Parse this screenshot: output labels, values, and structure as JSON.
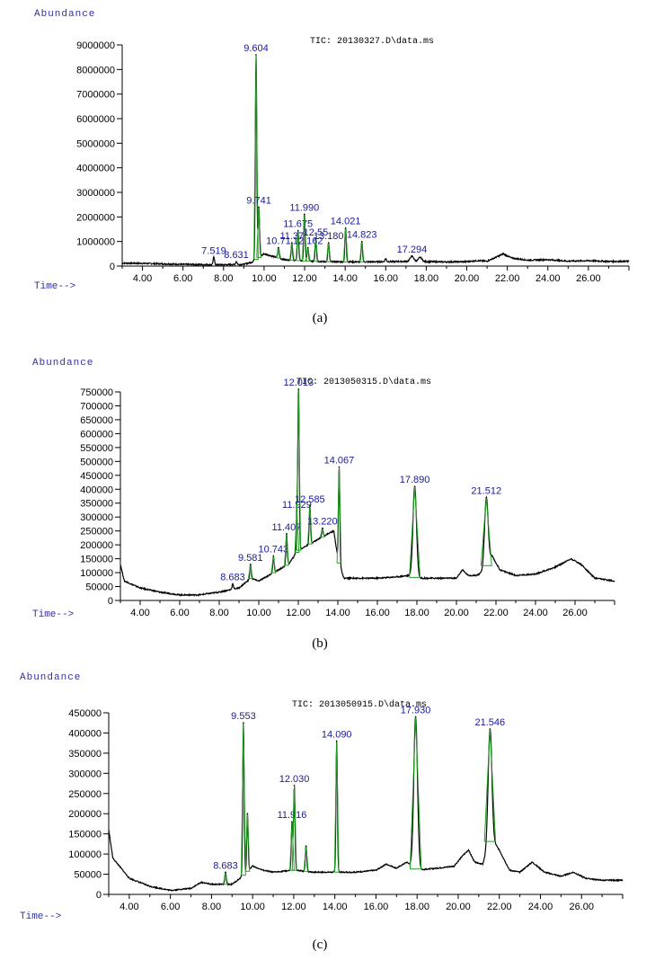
{
  "chart_data": [
    {
      "type": "line",
      "caption": "(a)",
      "ylabel": "Abundance",
      "xlabel": "Time-->",
      "title": "TIC: 20130327.D\\data.ms",
      "xlim": [
        3.0,
        28.0
      ],
      "ylim": [
        0,
        9000000
      ],
      "x_ticks": [
        "4.00",
        "6.00",
        "8.00",
        "10.00",
        "12.00",
        "14.00",
        "16.00",
        "18.00",
        "20.00",
        "22.00",
        "24.00",
        "26.00"
      ],
      "y_ticks": [
        "0",
        "1000000",
        "2000000",
        "3000000",
        "4000000",
        "5000000",
        "6000000",
        "7000000",
        "8000000",
        "9000000"
      ],
      "baseline": [
        [
          3.0,
          120000
        ],
        [
          4.0,
          110000
        ],
        [
          5.0,
          90000
        ],
        [
          6.0,
          70000
        ],
        [
          7.0,
          60000
        ],
        [
          8.0,
          55000
        ],
        [
          9.0,
          70000
        ],
        [
          9.4,
          160000
        ],
        [
          10.0,
          500000
        ],
        [
          10.5,
          380000
        ],
        [
          11.0,
          260000
        ],
        [
          12.0,
          210000
        ],
        [
          13.0,
          180000
        ],
        [
          14.0,
          170000
        ],
        [
          15.0,
          170000
        ],
        [
          16.0,
          180000
        ],
        [
          17.0,
          190000
        ],
        [
          18.0,
          180000
        ],
        [
          19.0,
          170000
        ],
        [
          20.0,
          180000
        ],
        [
          20.5,
          220000
        ],
        [
          21.0,
          200000
        ],
        [
          21.5,
          380000
        ],
        [
          21.8,
          500000
        ],
        [
          22.2,
          330000
        ],
        [
          23.0,
          240000
        ],
        [
          24.0,
          260000
        ],
        [
          25.0,
          200000
        ],
        [
          26.0,
          220000
        ],
        [
          27.0,
          190000
        ],
        [
          28.0,
          190000
        ]
      ],
      "peaks": [
        {
          "rt": 7.519,
          "height": 350000,
          "label": "7.519"
        },
        {
          "rt": 8.631,
          "height": 180000,
          "label": "8.631"
        },
        {
          "rt": 9.604,
          "height": 8600000,
          "label": "9.604"
        },
        {
          "rt": 9.741,
          "height": 2400000,
          "label": "9.741"
        },
        {
          "rt": 10.71,
          "height": 750000,
          "label": "10.71"
        },
        {
          "rt": 11.37,
          "height": 950000,
          "label": "11.37"
        },
        {
          "rt": 11.675,
          "height": 1450000,
          "label": "11.675"
        },
        {
          "rt": 11.99,
          "height": 2100000,
          "label": "11.990"
        },
        {
          "rt": 12.162,
          "height": 750000,
          "label": "12.162"
        },
        {
          "rt": 12.55,
          "height": 1100000,
          "label": "12.55"
        },
        {
          "rt": 13.18,
          "height": 950000,
          "label": "13.180"
        },
        {
          "rt": 14.021,
          "height": 1550000,
          "label": "14.021"
        },
        {
          "rt": 14.823,
          "height": 1000000,
          "label": "14.823"
        },
        {
          "rt": 16.0,
          "height": 300000,
          "label": ""
        },
        {
          "rt": 17.294,
          "height": 400000,
          "label": "17.294"
        },
        {
          "rt": 17.7,
          "height": 350000,
          "label": ""
        }
      ]
    },
    {
      "type": "line",
      "caption": "(b)",
      "ylabel": "Abundance",
      "xlabel": "Time-->",
      "title": "TIC: 2013050315.D\\data.ms",
      "xlim": [
        3.0,
        28.0
      ],
      "ylim": [
        0,
        750000
      ],
      "x_ticks": [
        "4.00",
        "6.00",
        "8.00",
        "10.00",
        "12.00",
        "14.00",
        "16.00",
        "18.00",
        "20.00",
        "22.00",
        "24.00",
        "26.00"
      ],
      "y_ticks": [
        "0",
        "50000",
        "100000",
        "150000",
        "200000",
        "250000",
        "300000",
        "350000",
        "400000",
        "450000",
        "500000",
        "550000",
        "600000",
        "650000",
        "700000",
        "750000"
      ],
      "baseline": [
        [
          3.0,
          130000
        ],
        [
          3.2,
          70000
        ],
        [
          4.0,
          45000
        ],
        [
          5.0,
          30000
        ],
        [
          6.0,
          20000
        ],
        [
          7.0,
          20000
        ],
        [
          8.0,
          30000
        ],
        [
          9.0,
          45000
        ],
        [
          9.6,
          80000
        ],
        [
          10.0,
          70000
        ],
        [
          10.5,
          90000
        ],
        [
          11.0,
          110000
        ],
        [
          11.5,
          130000
        ],
        [
          12.0,
          180000
        ],
        [
          12.5,
          200000
        ],
        [
          13.0,
          220000
        ],
        [
          13.5,
          240000
        ],
        [
          13.8,
          250000
        ],
        [
          14.0,
          150000
        ],
        [
          14.3,
          80000
        ],
        [
          15.0,
          80000
        ],
        [
          16.0,
          80000
        ],
        [
          17.0,
          85000
        ],
        [
          17.6,
          90000
        ],
        [
          18.0,
          80000
        ],
        [
          19.0,
          80000
        ],
        [
          20.0,
          80000
        ],
        [
          20.3,
          110000
        ],
        [
          20.6,
          90000
        ],
        [
          21.0,
          90000
        ],
        [
          21.3,
          100000
        ],
        [
          21.8,
          160000
        ],
        [
          22.2,
          110000
        ],
        [
          23.0,
          90000
        ],
        [
          24.0,
          95000
        ],
        [
          25.0,
          120000
        ],
        [
          25.8,
          150000
        ],
        [
          26.3,
          130000
        ],
        [
          27.0,
          80000
        ],
        [
          28.0,
          70000
        ]
      ],
      "peaks": [
        {
          "rt": 8.683,
          "height": 60000,
          "label": "8.683"
        },
        {
          "rt": 9.581,
          "height": 130000,
          "label": "9.581"
        },
        {
          "rt": 10.743,
          "height": 160000,
          "label": "10.743"
        },
        {
          "rt": 11.407,
          "height": 240000,
          "label": "11.407"
        },
        {
          "rt": 11.929,
          "height": 320000,
          "label": "11.929"
        },
        {
          "rt": 12.013,
          "height": 760000,
          "label": "12.013"
        },
        {
          "rt": 12.585,
          "height": 340000,
          "label": "12.585"
        },
        {
          "rt": 13.22,
          "height": 260000,
          "label": "13.220"
        },
        {
          "rt": 14.067,
          "height": 480000,
          "label": "14.067"
        },
        {
          "rt": 17.89,
          "height": 410000,
          "label": "17.890"
        },
        {
          "rt": 21.512,
          "height": 370000,
          "label": "21.512"
        }
      ]
    },
    {
      "type": "line",
      "caption": "(c)",
      "ylabel": "Abundance",
      "xlabel": "Time-->",
      "title": "TIC: 2013050915.D\\data.ms",
      "xlim": [
        3.0,
        28.0
      ],
      "ylim": [
        0,
        450000
      ],
      "x_ticks": [
        "4.00",
        "6.00",
        "8.00",
        "10.00",
        "12.00",
        "14.00",
        "16.00",
        "18.00",
        "20.00",
        "22.00",
        "24.00",
        "26.00"
      ],
      "y_ticks": [
        "0",
        "50000",
        "100000",
        "150000",
        "200000",
        "250000",
        "300000",
        "350000",
        "400000",
        "450000"
      ],
      "baseline": [
        [
          3.0,
          160000
        ],
        [
          3.2,
          90000
        ],
        [
          4.0,
          40000
        ],
        [
          5.0,
          20000
        ],
        [
          6.0,
          10000
        ],
        [
          7.0,
          15000
        ],
        [
          7.5,
          30000
        ],
        [
          8.0,
          25000
        ],
        [
          9.0,
          25000
        ],
        [
          9.4,
          40000
        ],
        [
          10.0,
          70000
        ],
        [
          10.5,
          60000
        ],
        [
          11.0,
          55000
        ],
        [
          12.0,
          60000
        ],
        [
          13.0,
          55000
        ],
        [
          14.0,
          55000
        ],
        [
          15.0,
          55000
        ],
        [
          16.0,
          60000
        ],
        [
          16.5,
          75000
        ],
        [
          17.0,
          65000
        ],
        [
          17.5,
          80000
        ],
        [
          18.0,
          60000
        ],
        [
          19.0,
          65000
        ],
        [
          19.8,
          70000
        ],
        [
          20.2,
          95000
        ],
        [
          20.5,
          110000
        ],
        [
          20.8,
          80000
        ],
        [
          21.2,
          75000
        ],
        [
          21.6,
          140000
        ],
        [
          22.0,
          110000
        ],
        [
          22.5,
          60000
        ],
        [
          23.0,
          55000
        ],
        [
          23.6,
          80000
        ],
        [
          24.2,
          55000
        ],
        [
          25.0,
          45000
        ],
        [
          25.6,
          55000
        ],
        [
          26.2,
          40000
        ],
        [
          27.0,
          35000
        ],
        [
          28.0,
          35000
        ]
      ],
      "peaks": [
        {
          "rt": 8.683,
          "height": 55000,
          "label": "8.683"
        },
        {
          "rt": 9.553,
          "height": 425000,
          "label": "9.553"
        },
        {
          "rt": 9.75,
          "height": 200000,
          "label": ""
        },
        {
          "rt": 11.916,
          "height": 180000,
          "label": "11.916"
        },
        {
          "rt": 12.03,
          "height": 270000,
          "label": "12.030"
        },
        {
          "rt": 12.6,
          "height": 120000,
          "label": ""
        },
        {
          "rt": 14.09,
          "height": 380000,
          "label": "14.090"
        },
        {
          "rt": 17.93,
          "height": 440000,
          "label": "17.930"
        },
        {
          "rt": 21.546,
          "height": 410000,
          "label": "21.546"
        }
      ]
    }
  ]
}
